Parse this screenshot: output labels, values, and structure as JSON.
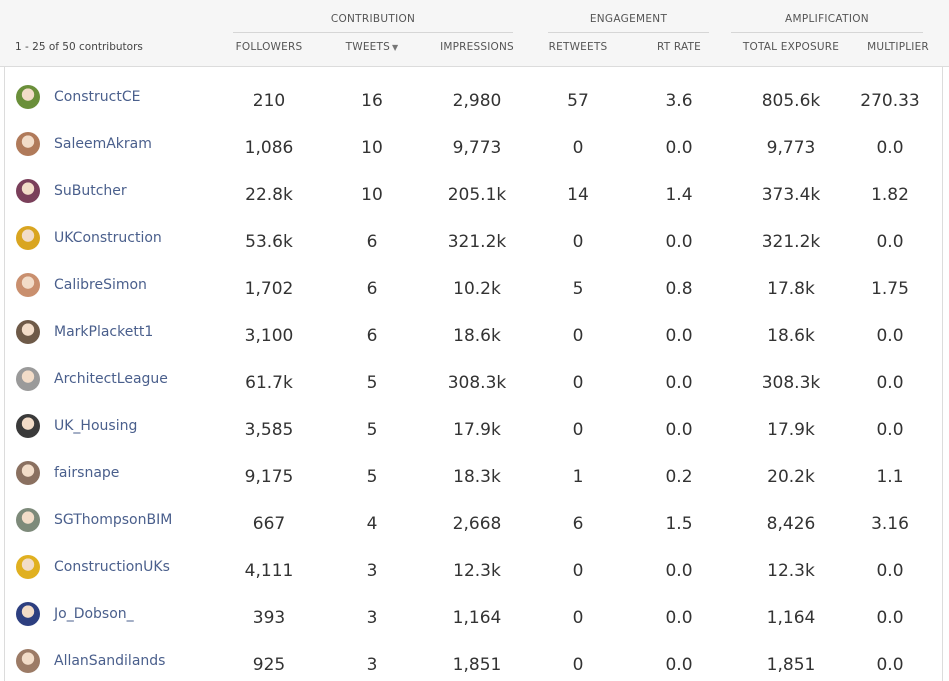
{
  "summary": "1 - 25 of 50 contributors",
  "groups": {
    "contribution": "CONTRIBUTION",
    "engagement": "ENGAGEMENT",
    "amplification": "AMPLIFICATION"
  },
  "columns": {
    "followers": "FOLLOWERS",
    "tweets": "TWEETS",
    "impressions": "IMPRESSIONS",
    "retweets": "RETWEETS",
    "rt_rate": "RT RATE",
    "total_exposure": "TOTAL EXPOSURE",
    "multiplier": "MULTIPLIER"
  },
  "sort_indicator": "▼",
  "rows": [
    {
      "name": "ConstructCE",
      "avatar_color": "#6a8f3a",
      "followers": "210",
      "tweets": "16",
      "impressions": "2,980",
      "retweets": "57",
      "rt_rate": "3.6",
      "total_exposure": "805.6k",
      "multiplier": "270.33"
    },
    {
      "name": "SaleemAkram",
      "avatar_color": "#b07a5a",
      "followers": "1,086",
      "tweets": "10",
      "impressions": "9,773",
      "retweets": "0",
      "rt_rate": "0.0",
      "total_exposure": "9,773",
      "multiplier": "0.0"
    },
    {
      "name": "SuButcher",
      "avatar_color": "#7a3f5a",
      "followers": "22.8k",
      "tweets": "10",
      "impressions": "205.1k",
      "retweets": "14",
      "rt_rate": "1.4",
      "total_exposure": "373.4k",
      "multiplier": "1.82"
    },
    {
      "name": "UKConstruction",
      "avatar_color": "#d9a520",
      "followers": "53.6k",
      "tweets": "6",
      "impressions": "321.2k",
      "retweets": "0",
      "rt_rate": "0.0",
      "total_exposure": "321.2k",
      "multiplier": "0.0"
    },
    {
      "name": "CalibreSimon",
      "avatar_color": "#c98f6e",
      "followers": "1,702",
      "tweets": "6",
      "impressions": "10.2k",
      "retweets": "5",
      "rt_rate": "0.8",
      "total_exposure": "17.8k",
      "multiplier": "1.75"
    },
    {
      "name": "MarkPlackett1",
      "avatar_color": "#6e5a48",
      "followers": "3,100",
      "tweets": "6",
      "impressions": "18.6k",
      "retweets": "0",
      "rt_rate": "0.0",
      "total_exposure": "18.6k",
      "multiplier": "0.0"
    },
    {
      "name": "ArchitectLeague",
      "avatar_color": "#9a9a9a",
      "followers": "61.7k",
      "tweets": "5",
      "impressions": "308.3k",
      "retweets": "0",
      "rt_rate": "0.0",
      "total_exposure": "308.3k",
      "multiplier": "0.0"
    },
    {
      "name": "UK_Housing",
      "avatar_color": "#3a3a3a",
      "followers": "3,585",
      "tweets": "5",
      "impressions": "17.9k",
      "retweets": "0",
      "rt_rate": "0.0",
      "total_exposure": "17.9k",
      "multiplier": "0.0"
    },
    {
      "name": "fairsnape",
      "avatar_color": "#8a7060",
      "followers": "9,175",
      "tweets": "5",
      "impressions": "18.3k",
      "retweets": "1",
      "rt_rate": "0.2",
      "total_exposure": "20.2k",
      "multiplier": "1.1"
    },
    {
      "name": "SGThompsonBIM",
      "avatar_color": "#7d8a7a",
      "followers": "667",
      "tweets": "4",
      "impressions": "2,668",
      "retweets": "6",
      "rt_rate": "1.5",
      "total_exposure": "8,426",
      "multiplier": "3.16"
    },
    {
      "name": "ConstructionUKs",
      "avatar_color": "#e0b020",
      "followers": "4,111",
      "tweets": "3",
      "impressions": "12.3k",
      "retweets": "0",
      "rt_rate": "0.0",
      "total_exposure": "12.3k",
      "multiplier": "0.0"
    },
    {
      "name": "Jo_Dobson_",
      "avatar_color": "#2d3f80",
      "followers": "393",
      "tweets": "3",
      "impressions": "1,164",
      "retweets": "0",
      "rt_rate": "0.0",
      "total_exposure": "1,164",
      "multiplier": "0.0"
    },
    {
      "name": "AllanSandilands",
      "avatar_color": "#9c7b66",
      "followers": "925",
      "tweets": "3",
      "impressions": "1,851",
      "retweets": "0",
      "rt_rate": "0.0",
      "total_exposure": "1,851",
      "multiplier": "0.0"
    }
  ]
}
